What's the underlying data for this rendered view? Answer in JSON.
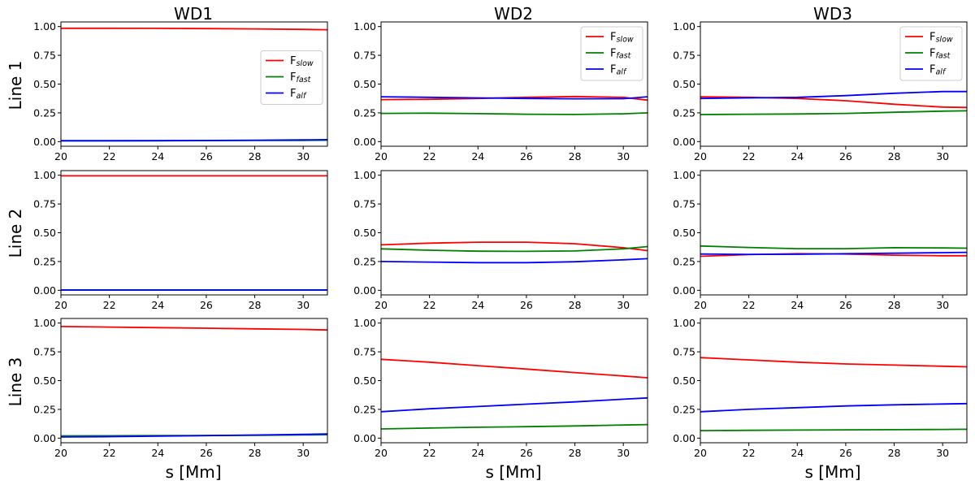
{
  "figure": {
    "column_titles": [
      "WD1",
      "WD2",
      "WD3"
    ],
    "row_titles": [
      "Line 1",
      "Line 2",
      "Line 3"
    ],
    "xlabel": "s [Mm]"
  },
  "chart_data": {
    "type": "line",
    "xlim": [
      20,
      31
    ],
    "ylim": [
      -0.04,
      1.04
    ],
    "xticks": [
      20,
      22,
      24,
      26,
      28,
      30
    ],
    "xtick_labels": [
      "20",
      "22",
      "24",
      "26",
      "28",
      "30"
    ],
    "yticks": [
      0.0,
      0.25,
      0.5,
      0.75,
      1.0
    ],
    "ytick_labels": [
      "0.00",
      "0.25",
      "0.50",
      "0.75",
      "1.00"
    ],
    "legend": [
      {
        "main": "F",
        "sub": "slow",
        "color": "#ff0000"
      },
      {
        "main": "F",
        "sub": "fast",
        "color": "#008000"
      },
      {
        "main": "F",
        "sub": "alf",
        "color": "#0000ff"
      }
    ],
    "x": [
      20,
      22,
      24,
      26,
      28,
      30,
      31
    ],
    "panels": [
      {
        "column": "WD1",
        "row": "Line 1",
        "legend": "center-right",
        "series": [
          {
            "name": "Fslow",
            "color": "#ff0000",
            "values": [
              0.985,
              0.985,
              0.984,
              0.982,
              0.979,
              0.975,
              0.972
            ]
          },
          {
            "name": "Ffast",
            "color": "#008000",
            "values": [
              0.008,
              0.008,
              0.008,
              0.009,
              0.01,
              0.011,
              0.012
            ]
          },
          {
            "name": "Falf",
            "color": "#0000ff",
            "values": [
              0.007,
              0.007,
              0.008,
              0.01,
              0.012,
              0.015,
              0.017
            ]
          }
        ]
      },
      {
        "column": "WD2",
        "row": "Line 1",
        "legend": "upper-right",
        "series": [
          {
            "name": "Fslow",
            "color": "#ff0000",
            "values": [
              0.365,
              0.368,
              0.375,
              0.385,
              0.392,
              0.385,
              0.36
            ]
          },
          {
            "name": "Ffast",
            "color": "#008000",
            "values": [
              0.245,
              0.247,
              0.243,
              0.238,
              0.236,
              0.242,
              0.25
            ]
          },
          {
            "name": "Falf",
            "color": "#0000ff",
            "values": [
              0.39,
              0.385,
              0.38,
              0.375,
              0.372,
              0.373,
              0.39
            ]
          }
        ]
      },
      {
        "column": "WD3",
        "row": "Line 1",
        "legend": "upper-right",
        "series": [
          {
            "name": "Fslow",
            "color": "#ff0000",
            "values": [
              0.39,
              0.385,
              0.375,
              0.355,
              0.325,
              0.3,
              0.297
            ]
          },
          {
            "name": "Ffast",
            "color": "#008000",
            "values": [
              0.235,
              0.238,
              0.24,
              0.245,
              0.255,
              0.265,
              0.268
            ]
          },
          {
            "name": "Falf",
            "color": "#0000ff",
            "values": [
              0.375,
              0.38,
              0.385,
              0.4,
              0.42,
              0.435,
              0.435
            ]
          }
        ]
      },
      {
        "column": "WD1",
        "row": "Line 2",
        "legend": "none",
        "series": [
          {
            "name": "Fslow",
            "color": "#ff0000",
            "values": [
              0.995,
              0.995,
              0.995,
              0.995,
              0.995,
              0.995,
              0.995
            ]
          },
          {
            "name": "Ffast",
            "color": "#008000",
            "values": [
              0.002,
              0.002,
              0.002,
              0.002,
              0.002,
              0.002,
              0.002
            ]
          },
          {
            "name": "Falf",
            "color": "#0000ff",
            "values": [
              0.003,
              0.003,
              0.003,
              0.003,
              0.003,
              0.003,
              0.003
            ]
          }
        ]
      },
      {
        "column": "WD2",
        "row": "Line 2",
        "legend": "none",
        "series": [
          {
            "name": "Fslow",
            "color": "#ff0000",
            "values": [
              0.395,
              0.41,
              0.418,
              0.418,
              0.405,
              0.37,
              0.345
            ]
          },
          {
            "name": "Ffast",
            "color": "#008000",
            "values": [
              0.36,
              0.348,
              0.34,
              0.338,
              0.342,
              0.36,
              0.38
            ]
          },
          {
            "name": "Falf",
            "color": "#0000ff",
            "values": [
              0.25,
              0.245,
              0.24,
              0.24,
              0.248,
              0.265,
              0.275
            ]
          }
        ]
      },
      {
        "column": "WD3",
        "row": "Line 2",
        "legend": "none",
        "series": [
          {
            "name": "Fslow",
            "color": "#ff0000",
            "values": [
              0.295,
              0.31,
              0.318,
              0.315,
              0.305,
              0.3,
              0.3
            ]
          },
          {
            "name": "Ffast",
            "color": "#008000",
            "values": [
              0.385,
              0.372,
              0.362,
              0.362,
              0.37,
              0.368,
              0.366
            ]
          },
          {
            "name": "Falf",
            "color": "#0000ff",
            "values": [
              0.315,
              0.312,
              0.313,
              0.318,
              0.322,
              0.327,
              0.33
            ]
          }
        ]
      },
      {
        "column": "WD1",
        "row": "Line 3",
        "legend": "none",
        "series": [
          {
            "name": "Fslow",
            "color": "#ff0000",
            "values": [
              0.97,
              0.965,
              0.96,
              0.955,
              0.95,
              0.945,
              0.94
            ]
          },
          {
            "name": "Ffast",
            "color": "#008000",
            "values": [
              0.02,
              0.021,
              0.022,
              0.023,
              0.025,
              0.028,
              0.03
            ]
          },
          {
            "name": "Falf",
            "color": "#0000ff",
            "values": [
              0.01,
              0.013,
              0.017,
              0.022,
              0.027,
              0.033,
              0.036
            ]
          }
        ]
      },
      {
        "column": "WD2",
        "row": "Line 3",
        "legend": "none",
        "series": [
          {
            "name": "Fslow",
            "color": "#ff0000",
            "values": [
              0.685,
              0.66,
              0.63,
              0.6,
              0.57,
              0.54,
              0.525
            ]
          },
          {
            "name": "Ffast",
            "color": "#008000",
            "values": [
              0.08,
              0.088,
              0.095,
              0.1,
              0.106,
              0.114,
              0.118
            ]
          },
          {
            "name": "Falf",
            "color": "#0000ff",
            "values": [
              0.23,
              0.255,
              0.275,
              0.295,
              0.315,
              0.338,
              0.35
            ]
          }
        ]
      },
      {
        "column": "WD3",
        "row": "Line 3",
        "legend": "none",
        "series": [
          {
            "name": "Fslow",
            "color": "#ff0000",
            "values": [
              0.7,
              0.68,
              0.66,
              0.645,
              0.635,
              0.625,
              0.62
            ]
          },
          {
            "name": "Ffast",
            "color": "#008000",
            "values": [
              0.065,
              0.068,
              0.07,
              0.072,
              0.074,
              0.076,
              0.077
            ]
          },
          {
            "name": "Falf",
            "color": "#0000ff",
            "values": [
              0.23,
              0.25,
              0.265,
              0.28,
              0.29,
              0.297,
              0.3
            ]
          }
        ]
      }
    ]
  }
}
